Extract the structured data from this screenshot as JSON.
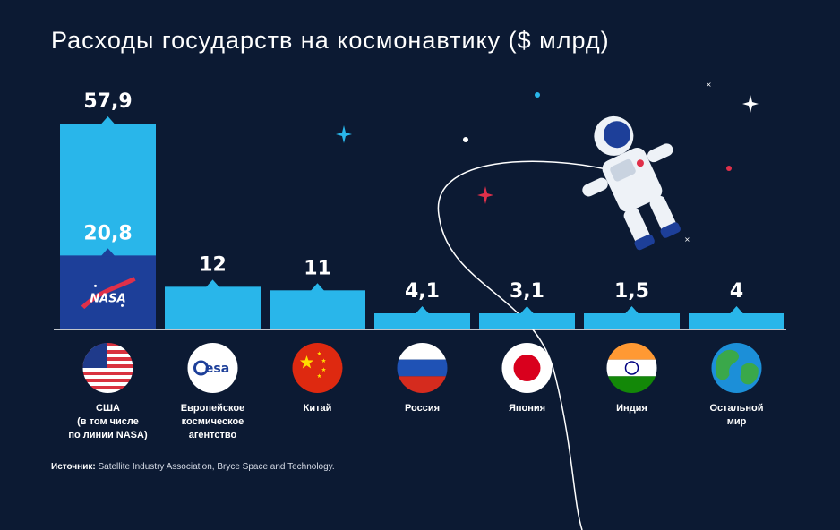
{
  "title": "Расходы государств на космонавтику ($ млрд)",
  "chart_data": {
    "type": "bar",
    "categories": [
      [
        "США",
        "(в том числе",
        "по линии NASA)"
      ],
      [
        "Европейское",
        "космическое",
        "агентство"
      ],
      [
        "Китай"
      ],
      [
        "Россия"
      ],
      [
        "Япония"
      ],
      [
        "Индия"
      ],
      [
        "Остальной",
        "мир"
      ]
    ],
    "values": [
      57.9,
      12,
      11,
      4.1,
      3.1,
      1.5,
      4
    ],
    "value_labels": [
      "57,9",
      "12",
      "11",
      "4,1",
      "3,1",
      "1,5",
      "4"
    ],
    "sub_series": {
      "name": "NASA",
      "values": [
        20.8
      ],
      "value_labels": [
        "20,8"
      ]
    },
    "bar_color": "#29b6ea",
    "sub_bar_color": "#1d3f99",
    "baseline_color": "#ffffff"
  },
  "nasa_logo_text": "NASA",
  "esa_logo_text": "esa",
  "source": {
    "label": "Источник:",
    "text": "Satellite Industry Association, Bryce Space and Technology."
  },
  "icons": [
    "usa-flag-icon",
    "esa-logo-icon",
    "china-flag-icon",
    "russia-flag-icon",
    "japan-flag-icon",
    "india-flag-icon",
    "earth-globe-icon",
    "astronaut-illustration",
    "nasa-logo-icon"
  ]
}
